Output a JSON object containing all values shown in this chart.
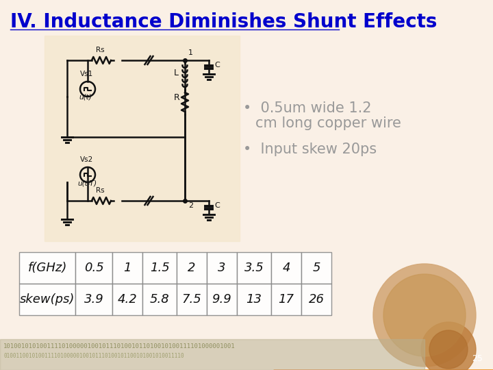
{
  "title": "IV. Inductance Diminishes Shunt Effects",
  "title_color": "#0000CC",
  "title_fontsize": 20,
  "bg_color": "#FAF0E6",
  "bullet1_line1": "0.5um wide 1.2",
  "bullet1_line2": "cm long copper wire",
  "bullet2": "Input skew 20ps",
  "bullet_color": "#999999",
  "bullet_fontsize": 15,
  "table_headers": [
    "f(GHz)",
    "0.5",
    "1",
    "1.5",
    "2",
    "3",
    "3.5",
    "4",
    "5"
  ],
  "table_row": [
    "skew(ps)",
    "3.9",
    "4.2",
    "5.8",
    "7.5",
    "9.9",
    "13",
    "17",
    "26"
  ],
  "table_fontsize": 13,
  "table_color": "#888888",
  "page_number": "25",
  "circuit_color": "#111111",
  "circuit_bg": "#F5E8D0",
  "orange_main": "#E87010",
  "orange_light": "#F0A030",
  "orange_sweep": "#F07820",
  "binary_color": "#909060",
  "bottom_bar_color": "#B8B090"
}
